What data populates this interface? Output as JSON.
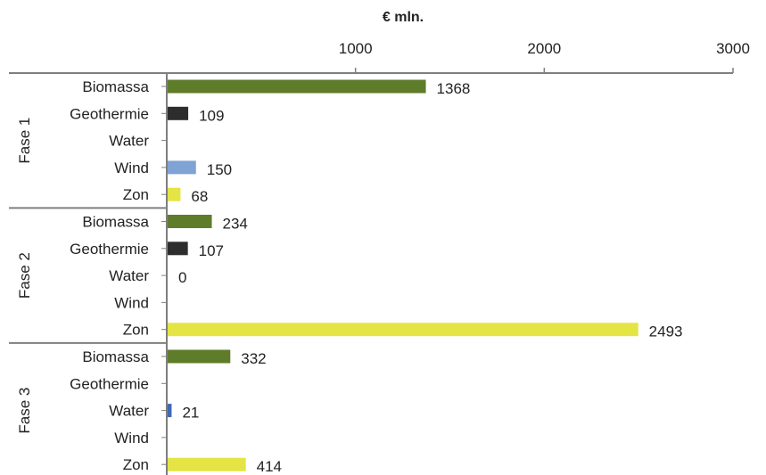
{
  "chart_data": {
    "type": "bar",
    "orientation": "horizontal",
    "title": "",
    "xlabel": "€ mln.",
    "ylabel": "",
    "xlim": [
      0,
      3000
    ],
    "xticks": [
      "1000",
      "2000",
      "3000"
    ],
    "xaxis_position": "top",
    "grid": false,
    "legend": "none",
    "groups": [
      {
        "name": "Fase 1",
        "items": [
          {
            "category": "Biomassa",
            "value": 1368,
            "label": "1368",
            "color": "#5f7c2a"
          },
          {
            "category": "Geothermie",
            "value": 109,
            "label": "109",
            "color": "#2d2d2d"
          },
          {
            "category": "Water",
            "value": null,
            "label": "",
            "color": "#3f68b5"
          },
          {
            "category": "Wind",
            "value": 150,
            "label": "150",
            "color": "#7ea3d4"
          },
          {
            "category": "Zon",
            "value": 68,
            "label": "68",
            "color": "#e4e444"
          }
        ]
      },
      {
        "name": "Fase 2",
        "items": [
          {
            "category": "Biomassa",
            "value": 234,
            "label": "234",
            "color": "#5f7c2a"
          },
          {
            "category": "Geothermie",
            "value": 107,
            "label": "107",
            "color": "#2d2d2d"
          },
          {
            "category": "Water",
            "value": 0,
            "label": "0",
            "color": "#3f68b5"
          },
          {
            "category": "Wind",
            "value": null,
            "label": "",
            "color": "#7ea3d4"
          },
          {
            "category": "Zon",
            "value": 2493,
            "label": "2493",
            "color": "#e4e444"
          }
        ]
      },
      {
        "name": "Fase 3",
        "items": [
          {
            "category": "Biomassa",
            "value": 332,
            "label": "332",
            "color": "#5f7c2a"
          },
          {
            "category": "Geothermie",
            "value": null,
            "label": "",
            "color": "#2d2d2d"
          },
          {
            "category": "Water",
            "value": 21,
            "label": "21",
            "color": "#3f68b5"
          },
          {
            "category": "Wind",
            "value": null,
            "label": "",
            "color": "#7ea3d4"
          },
          {
            "category": "Zon",
            "value": 414,
            "label": "414",
            "color": "#e4e444"
          }
        ]
      }
    ]
  }
}
